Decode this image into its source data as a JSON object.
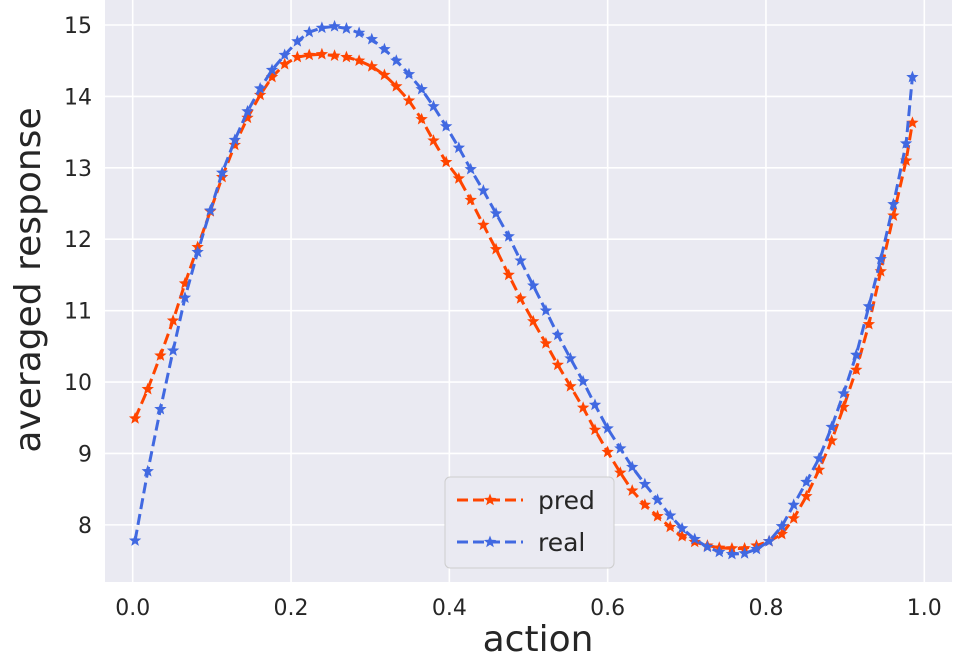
{
  "chart_data": {
    "type": "line",
    "title": "",
    "xlabel": "action",
    "ylabel": "averaged response",
    "xlim": [
      -0.035,
      1.035
    ],
    "ylim": [
      7.2,
      15.35
    ],
    "xticks": [
      0.0,
      0.2,
      0.4,
      0.6,
      0.8,
      1.0
    ],
    "xtick_labels": [
      "0.0",
      "0.2",
      "0.4",
      "0.6",
      "0.8",
      "1.0"
    ],
    "yticks": [
      8,
      9,
      10,
      11,
      12,
      13,
      14,
      15
    ],
    "ytick_labels": [
      "8",
      "9",
      "10",
      "11",
      "12",
      "13",
      "14",
      "15"
    ],
    "grid": true,
    "legend": {
      "position": "bottom-center"
    },
    "series": [
      {
        "name": "pred",
        "color": "#ff4500",
        "line_style": "dashed",
        "marker": "star",
        "x": [
          0.003,
          0.019,
          0.035,
          0.051,
          0.066,
          0.082,
          0.098,
          0.113,
          0.129,
          0.145,
          0.161,
          0.176,
          0.192,
          0.208,
          0.223,
          0.239,
          0.255,
          0.27,
          0.286,
          0.302,
          0.318,
          0.333,
          0.349,
          0.365,
          0.38,
          0.396,
          0.412,
          0.427,
          0.443,
          0.459,
          0.475,
          0.49,
          0.506,
          0.522,
          0.537,
          0.553,
          0.569,
          0.584,
          0.6,
          0.616,
          0.631,
          0.647,
          0.663,
          0.679,
          0.694,
          0.71,
          0.726,
          0.741,
          0.757,
          0.773,
          0.788,
          0.804,
          0.82,
          0.835,
          0.851,
          0.867,
          0.883,
          0.898,
          0.914,
          0.93,
          0.945,
          0.961,
          0.977,
          0.985
        ],
        "y": [
          9.49,
          9.9,
          10.37,
          10.86,
          11.38,
          11.89,
          12.39,
          12.87,
          13.32,
          13.7,
          14.02,
          14.27,
          14.45,
          14.55,
          14.58,
          14.59,
          14.57,
          14.55,
          14.5,
          14.42,
          14.3,
          14.14,
          13.94,
          13.68,
          13.38,
          13.08,
          12.85,
          12.55,
          12.2,
          11.86,
          11.5,
          11.17,
          10.85,
          10.54,
          10.24,
          9.94,
          9.64,
          9.33,
          9.02,
          8.73,
          8.48,
          8.28,
          8.12,
          7.97,
          7.84,
          7.76,
          7.71,
          7.68,
          7.67,
          7.67,
          7.71,
          7.77,
          7.87,
          8.09,
          8.4,
          8.77,
          9.18,
          9.65,
          10.17,
          10.81,
          11.55,
          12.33,
          13.1,
          13.63
        ]
      },
      {
        "name": "real",
        "color": "#4169e1",
        "line_style": "dashed",
        "marker": "star",
        "x": [
          0.003,
          0.019,
          0.035,
          0.051,
          0.066,
          0.082,
          0.098,
          0.113,
          0.129,
          0.145,
          0.161,
          0.176,
          0.192,
          0.208,
          0.223,
          0.239,
          0.255,
          0.27,
          0.286,
          0.302,
          0.318,
          0.333,
          0.349,
          0.365,
          0.38,
          0.396,
          0.412,
          0.427,
          0.443,
          0.459,
          0.475,
          0.49,
          0.506,
          0.522,
          0.537,
          0.553,
          0.569,
          0.584,
          0.6,
          0.616,
          0.631,
          0.647,
          0.663,
          0.679,
          0.694,
          0.71,
          0.726,
          0.741,
          0.757,
          0.773,
          0.788,
          0.804,
          0.82,
          0.835,
          0.851,
          0.867,
          0.883,
          0.898,
          0.914,
          0.93,
          0.945,
          0.961,
          0.977,
          0.985
        ],
        "y": [
          7.78,
          8.75,
          9.62,
          10.44,
          11.18,
          11.82,
          12.4,
          12.93,
          13.39,
          13.79,
          14.11,
          14.37,
          14.58,
          14.77,
          14.9,
          14.96,
          14.98,
          14.95,
          14.89,
          14.8,
          14.66,
          14.5,
          14.31,
          14.1,
          13.86,
          13.58,
          13.28,
          12.98,
          12.68,
          12.36,
          12.04,
          11.7,
          11.35,
          11.0,
          10.66,
          10.33,
          10.01,
          9.68,
          9.35,
          9.07,
          8.81,
          8.57,
          8.35,
          8.13,
          7.95,
          7.8,
          7.69,
          7.62,
          7.59,
          7.6,
          7.66,
          7.77,
          7.98,
          8.28,
          8.6,
          8.93,
          9.37,
          9.84,
          10.38,
          11.06,
          11.72,
          12.49,
          13.34,
          14.27
        ]
      }
    ]
  }
}
